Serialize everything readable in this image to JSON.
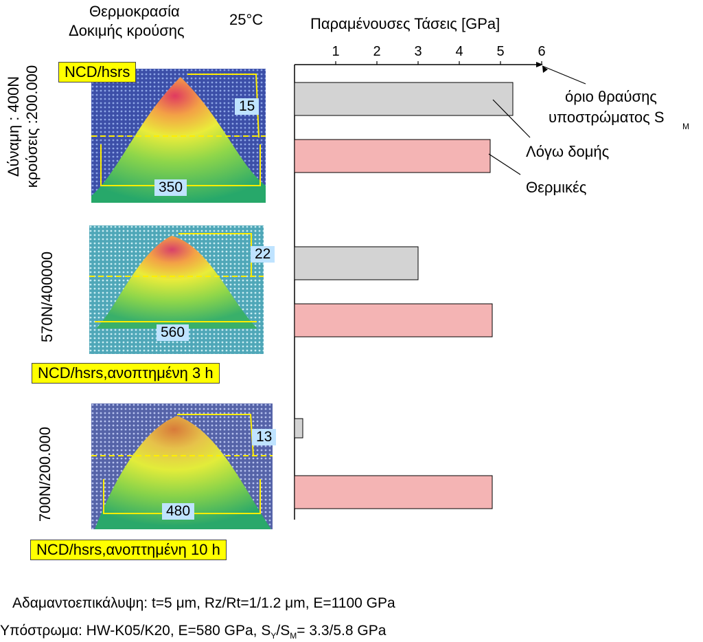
{
  "header": {
    "temp_line1": "Θερμοκρασία",
    "temp_line2": "Δοκιμής κρούσης",
    "temp_value": "25°C"
  },
  "rows": [
    {
      "ylabel_line1": "Δύναμη : 400N",
      "ylabel_line2": "κρούσεις :200.000",
      "tag": "NCD/hsrs",
      "height_label": "15",
      "width_label": "350"
    },
    {
      "ylabel_line1": "570N/400000",
      "tag": "NCD/hsrs,ανοπτημένη 3 h",
      "height_label": "22",
      "width_label": "560"
    },
    {
      "ylabel_line1": "700N/200.000",
      "tag": "NCD/hsrs,ανοπτημένη 10 h",
      "height_label": "13",
      "width_label": "480"
    }
  ],
  "chart_data": {
    "type": "bar",
    "orientation": "horizontal",
    "title": "Παραμένουσες Τάσεις [GPa]",
    "xlim": [
      0,
      6
    ],
    "xticks": [
      1,
      2,
      3,
      4,
      5,
      6
    ],
    "categories": [
      "NCD/hsrs",
      "NCD/hsrs,ανοπτημένη 3 h",
      "NCD/hsrs,ανοπτημένη 10 h"
    ],
    "series": [
      {
        "name": "Λόγω δομής",
        "color": "#d3d3d3",
        "values": [
          5.3,
          3.0,
          0.2
        ]
      },
      {
        "name": "Θερμικές",
        "color": "#f4b4b4",
        "values": [
          4.75,
          4.8,
          4.8
        ]
      }
    ],
    "annotations": [
      {
        "text": "όριο θραύσης",
        "text2": "υποστρώματος S",
        "sub": "M",
        "target_x": 6
      },
      {
        "text": "Λόγω δομής"
      },
      {
        "text": "Θερμικές"
      }
    ]
  },
  "footer": {
    "line1": "Αδαμαντοεπικάλυψη: t=5 μm, Rz/Rt=1/1.2 μm, E=1100 GPa",
    "line2_a": "Υπόστρωμα: HW-K05/K20, E=580 GPa, S",
    "line2_sub1": "Y",
    "line2_b": "/S",
    "line2_sub2": "M",
    "line2_c": "= 3.3/5.8 GPa"
  }
}
